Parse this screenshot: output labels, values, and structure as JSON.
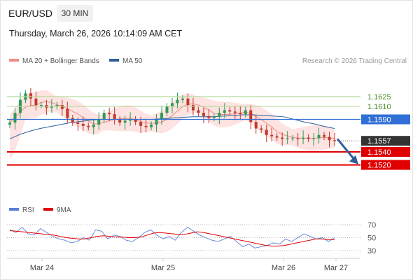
{
  "header": {
    "symbol": "EUR/USD",
    "timeframe": "30 MIN",
    "datetime": "Thursday, March 26, 2026 10:14:09 AM CET"
  },
  "legend": {
    "ma20_label": "MA 20 + Bollinger Bands",
    "ma50_label": "MA 50",
    "credit": "Research © 2026 Trading Central",
    "rsi_label": "RSI",
    "rsi_ma_label": "9MA"
  },
  "colors": {
    "ma20": "#f28b82",
    "band_fill": "#fde3e1",
    "ma50": "#2d5f9e",
    "green_level": "#b5d99c",
    "blue_level": "#2f6fd6",
    "red_level": "#e00000",
    "current": "#333333",
    "up_candle": "#2e9b58",
    "down_candle": "#c0392b",
    "rsi": "#5b7fd6",
    "rsi_ma": "#e00000",
    "arrow": "#2d5f9e"
  },
  "chart_data": {
    "type": "candlestick",
    "x_ticks": [
      "Mar 24",
      "Mar 25",
      "Mar 26",
      "Mar 27"
    ],
    "price_levels": [
      {
        "label": "1.1625",
        "value": 1.1625,
        "kind": "green"
      },
      {
        "label": "1.1610",
        "value": 1.161,
        "kind": "green"
      },
      {
        "label": "1.1590",
        "value": 1.159,
        "kind": "blue"
      },
      {
        "label": "1.1557",
        "value": 1.1557,
        "kind": "current"
      },
      {
        "label": "1.1540",
        "value": 1.154,
        "kind": "red"
      },
      {
        "label": "1.1520",
        "value": 1.152,
        "kind": "red"
      }
    ],
    "price_close_series": [
      1.1585,
      1.16,
      1.162,
      1.163,
      1.1622,
      1.1612,
      1.1612,
      1.1608,
      1.161,
      1.1612,
      1.1606,
      1.1592,
      1.1585,
      1.1583,
      1.158,
      1.1578,
      1.1582,
      1.159,
      1.16,
      1.1598,
      1.159,
      1.1585,
      1.1588,
      1.159,
      1.1586,
      1.158,
      1.1578,
      1.1582,
      1.159,
      1.16,
      1.161,
      1.1615,
      1.162,
      1.1622,
      1.1612,
      1.1604,
      1.16,
      1.1595,
      1.1592,
      1.1594,
      1.16,
      1.1604,
      1.1602,
      1.16,
      1.1598,
      1.1604,
      1.1586,
      1.1576,
      1.1574,
      1.1566,
      1.1564,
      1.1562,
      1.156,
      1.1561,
      1.1561,
      1.156,
      1.1562,
      1.156,
      1.1561,
      1.1566,
      1.1563,
      1.1558,
      1.1557
    ],
    "ma50_series": [
      1.156,
      1.1567,
      1.1572,
      1.1576,
      1.1579,
      1.1582,
      1.1585,
      1.1587,
      1.1589,
      1.159,
      1.159,
      1.159,
      1.159,
      1.159,
      1.159,
      1.1591,
      1.1592,
      1.1593,
      1.1594,
      1.1594,
      1.1594,
      1.1595,
      1.1596,
      1.1597,
      1.1597,
      1.1596,
      1.1595,
      1.1594,
      1.159,
      1.1586,
      1.1583,
      1.1579,
      1.1576
    ],
    "rsi": {
      "levels": [
        70,
        50,
        30
      ],
      "ylim": [
        20,
        80
      ],
      "rsi_values": [
        62,
        58,
        66,
        56,
        54,
        64,
        58,
        52,
        48,
        46,
        42,
        44,
        50,
        46,
        62,
        60,
        48,
        54,
        52,
        46,
        44,
        50,
        58,
        62,
        54,
        48,
        52,
        46,
        58,
        66,
        60,
        54,
        50,
        46,
        44,
        48,
        52,
        44,
        36,
        40,
        34,
        36,
        38,
        42,
        40,
        48,
        44,
        50,
        56,
        52,
        48,
        50,
        44,
        50
      ],
      "ma_values": [
        61,
        60,
        59,
        58,
        57,
        56,
        55,
        54,
        52,
        50,
        49,
        48,
        48,
        50,
        52,
        53,
        52,
        51,
        51,
        50,
        50,
        51,
        54,
        57,
        58,
        57,
        56,
        55,
        55,
        57,
        59,
        58,
        56,
        54,
        52,
        50,
        48,
        46,
        44,
        42,
        40,
        38,
        37,
        37,
        38,
        40,
        42,
        44,
        46,
        48,
        48,
        47,
        47
      ]
    }
  }
}
